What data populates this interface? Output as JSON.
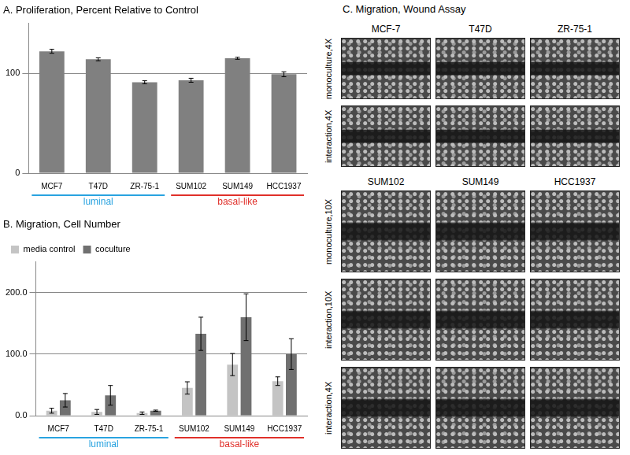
{
  "chart_data": [
    {
      "type": "bar",
      "title": "A. Proliferation, Percent Relative to Control",
      "categories": [
        "MCF7",
        "T47D",
        "ZR-75-1",
        "SUM102",
        "SUM149",
        "HCC1937"
      ],
      "values": [
        122,
        114,
        91,
        93,
        115,
        99
      ],
      "errors": [
        2,
        1.5,
        1.5,
        2,
        1,
        2.5
      ],
      "color": "#808080",
      "ylim": [
        0,
        150
      ],
      "yticks": [
        0,
        100
      ],
      "grid": true,
      "groups": [
        {
          "name": "luminal",
          "color": "#29a3e0",
          "count": 3
        },
        {
          "name": "basal-like",
          "color": "#e0302a",
          "count": 3
        }
      ]
    },
    {
      "type": "bar",
      "title": "B. Migration, Cell Number",
      "categories": [
        "MCF7",
        "T47D",
        "ZR-75-1",
        "SUM102",
        "SUM149",
        "HCC1937"
      ],
      "series": [
        {
          "name": "media control",
          "color": "#c4c4c4",
          "values": [
            8,
            6,
            4,
            45,
            83,
            56
          ],
          "errors": [
            4,
            4,
            2,
            10,
            18,
            7
          ]
        },
        {
          "name": "coculture",
          "color": "#707070",
          "values": [
            25,
            33,
            8,
            133,
            160,
            100
          ],
          "errors": [
            11,
            16,
            1,
            27,
            38,
            25
          ]
        }
      ],
      "ylim": [
        0,
        250
      ],
      "yticks": [
        {
          "value": 0,
          "label": "0.0"
        },
        {
          "value": 100,
          "label": "100.0"
        },
        {
          "value": 200,
          "label": "200.0"
        }
      ],
      "grid": true,
      "legend": "upper left",
      "groups": [
        {
          "name": "luminal",
          "color": "#29a3e0",
          "count": 3
        },
        {
          "name": "basal-like",
          "color": "#e0302a",
          "count": 3
        }
      ]
    }
  ],
  "wound_assay": {
    "title": "C. Migration, Wound Assay",
    "panels": [
      {
        "columns": [
          "MCF-7",
          "T47D",
          "ZR-75-1"
        ],
        "rows": [
          "monoculture,4X",
          "interaction,4X"
        ]
      },
      {
        "columns": [
          "SUM102",
          "SUM149",
          "HCC1937"
        ],
        "rows": [
          "monoculture,10X",
          "interaction,10X",
          "interaction,4X"
        ]
      }
    ]
  }
}
